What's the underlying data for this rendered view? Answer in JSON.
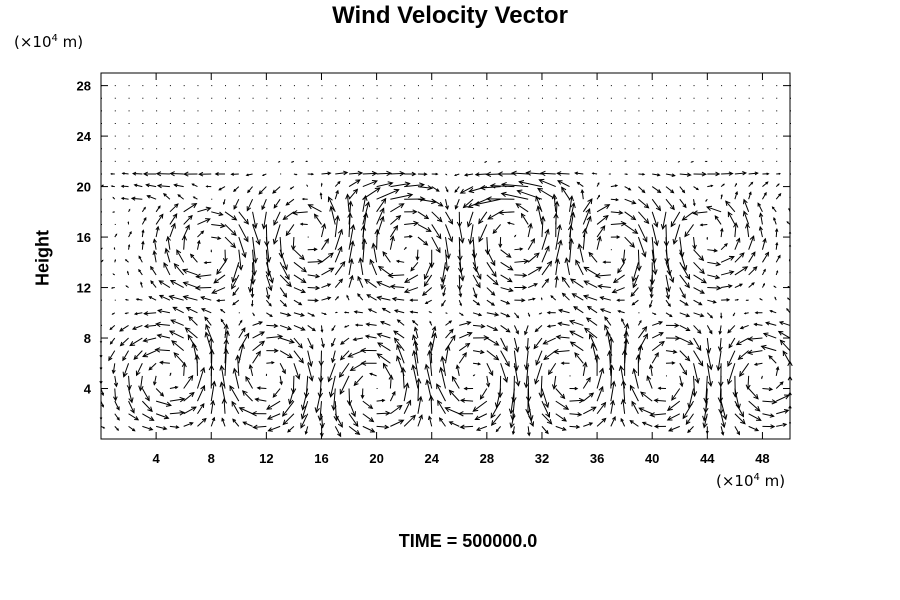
{
  "chart_data": {
    "type": "vector-field",
    "title": "Wind Velocity Vector",
    "ylabel": "Height",
    "x_unit": {
      "prefix": "(×10",
      "exp": "4",
      "suffix": " m)"
    },
    "y_unit": {
      "prefix": "(×10",
      "exp": "4",
      "suffix": " m)"
    },
    "xlim": [
      0,
      50
    ],
    "ylim": [
      0,
      29
    ],
    "x_ticks": [
      4,
      8,
      12,
      16,
      20,
      24,
      28,
      32,
      36,
      40,
      44,
      48
    ],
    "y_ticks": [
      4,
      8,
      12,
      16,
      20,
      24,
      28
    ],
    "grid_x": {
      "start": 0,
      "end": 50,
      "step": 1
    },
    "grid_y": {
      "start": 1,
      "end": 28,
      "step": 1
    },
    "footer": "TIME = 500000.0"
  }
}
